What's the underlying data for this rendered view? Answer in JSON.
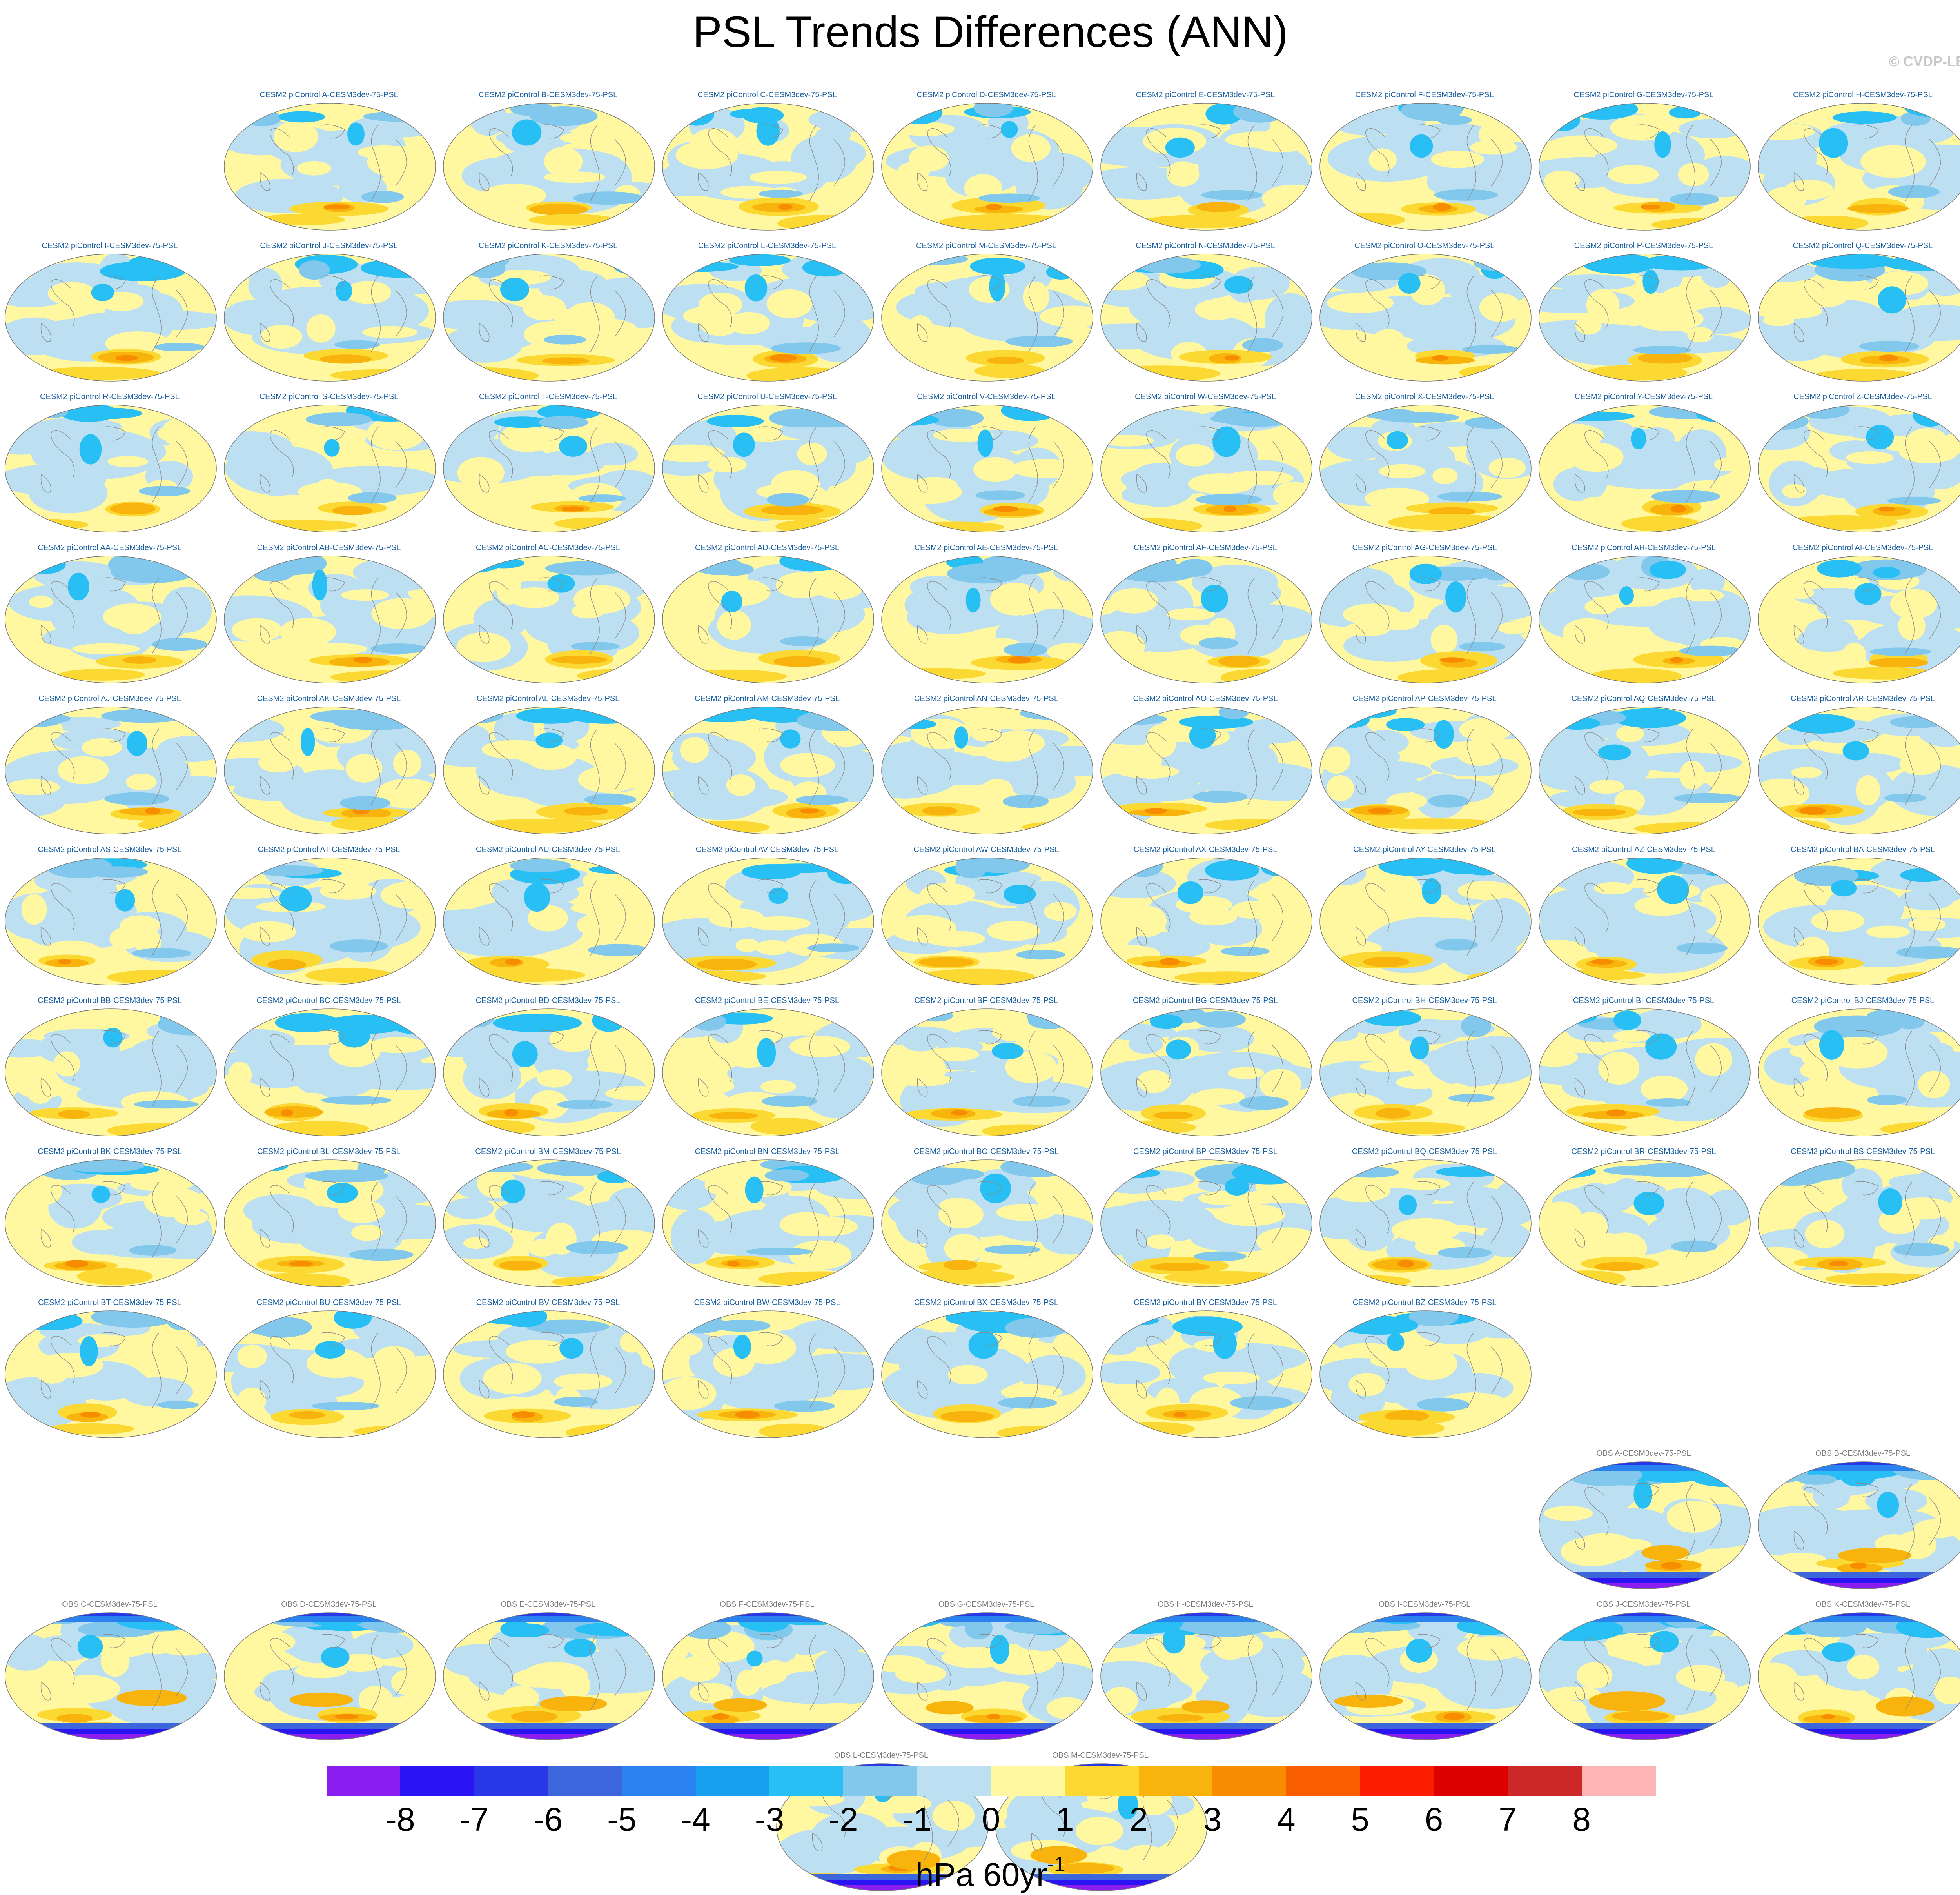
{
  "title": "PSL Trends Differences (ANN)",
  "credit": "© CVDP-LE",
  "model_prefix": "CESM2 piControl ",
  "obs_prefix": "OBS ",
  "panel_suffix": "-CESM3dev-75-PSL",
  "model_members": [
    "A",
    "B",
    "C",
    "D",
    "E",
    "F",
    "G",
    "H",
    "I",
    "J",
    "K",
    "L",
    "M",
    "N",
    "O",
    "P",
    "Q",
    "R",
    "S",
    "T",
    "U",
    "V",
    "W",
    "X",
    "Y",
    "Z",
    "AA",
    "AB",
    "AC",
    "AD",
    "AE",
    "AF",
    "AG",
    "AH",
    "AI",
    "AJ",
    "AK",
    "AL",
    "AM",
    "AN",
    "AO",
    "AP",
    "AQ",
    "AR",
    "AS",
    "AT",
    "AU",
    "AV",
    "AW",
    "AX",
    "AY",
    "AZ",
    "BA",
    "BB",
    "BC",
    "BD",
    "BE",
    "BF",
    "BG",
    "BH",
    "BI",
    "BJ",
    "BK",
    "BL",
    "BM",
    "BN",
    "BO",
    "BP",
    "BQ",
    "BR",
    "BS",
    "BT",
    "BU",
    "BV",
    "BW",
    "BX",
    "BY",
    "BZ"
  ],
  "obs_members": [
    "A",
    "B",
    "C",
    "D",
    "E",
    "F",
    "G",
    "H",
    "I",
    "J",
    "K",
    "L",
    "M"
  ],
  "colorbar": {
    "colors": [
      "#8a1ef0",
      "#2b14f4",
      "#2838e8",
      "#3c66dc",
      "#2a82f0",
      "#18a0f0",
      "#28bff4",
      "#82c8ec",
      "#bcdff2",
      "#fff8a0",
      "#fcd832",
      "#f8b30c",
      "#f88c00",
      "#f85e00",
      "#fc1c00",
      "#dc0000",
      "#cc2828",
      "#fcb4b4"
    ],
    "tick_labels": [
      "-8",
      "-7",
      "-6",
      "-5",
      "-4",
      "-3",
      "-2",
      "-1",
      "0",
      "1",
      "2",
      "3",
      "4",
      "5",
      "6",
      "7",
      "8"
    ],
    "units": "hPa 60yr",
    "units_exponent": "-1"
  }
}
